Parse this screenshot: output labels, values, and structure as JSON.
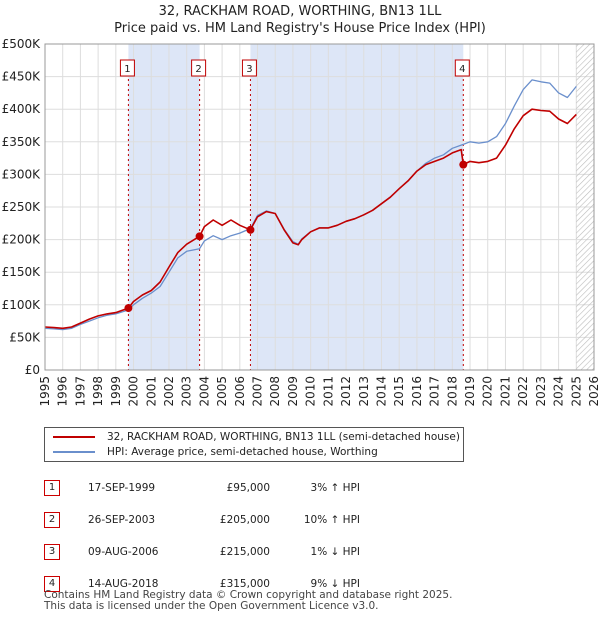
{
  "header": {
    "title": "32, RACKHAM ROAD, WORTHING, BN13 1LL",
    "subtitle": "Price paid vs. HM Land Registry's House Price Index (HPI)"
  },
  "legend": {
    "property": "32, RACKHAM ROAD, WORTHING, BN13 1LL (semi-detached house)",
    "hpi": "HPI: Average price, semi-detached house, Worthing"
  },
  "sales": [
    {
      "num": "1",
      "date": "17-SEP-1999",
      "price": "£95,000",
      "hpi": "3% ↑ HPI"
    },
    {
      "num": "2",
      "date": "26-SEP-2003",
      "price": "£205,000",
      "hpi": "10% ↑ HPI"
    },
    {
      "num": "3",
      "date": "09-AUG-2006",
      "price": "£215,000",
      "hpi": "1% ↓ HPI"
    },
    {
      "num": "4",
      "date": "14-AUG-2018",
      "price": "£315,000",
      "hpi": "9% ↓ HPI"
    }
  ],
  "footer": {
    "line1": "Contains HM Land Registry data © Crown copyright and database right 2025.",
    "line2": "This data is licensed under the Open Government Licence v3.0."
  },
  "colors": {
    "property": "#c00000",
    "hpi": "#6a8fcc",
    "shade": "#dde6f7",
    "grid": "#dddddd"
  },
  "chart_data": {
    "type": "line",
    "title": "32, RACKHAM ROAD, WORTHING, BN13 1LL",
    "subtitle": "Price paid vs. HM Land Registry's House Price Index (HPI)",
    "xlabel": "",
    "ylabel": "",
    "xlim": [
      1995,
      2026
    ],
    "ylim": [
      0,
      500000
    ],
    "yticks": [
      0,
      50000,
      100000,
      150000,
      200000,
      250000,
      300000,
      350000,
      400000,
      450000,
      500000
    ],
    "ytick_labels": [
      "£0",
      "£50K",
      "£100K",
      "£150K",
      "£200K",
      "£250K",
      "£300K",
      "£350K",
      "£400K",
      "£450K",
      "£500K"
    ],
    "xticks": [
      1995,
      1996,
      1997,
      1998,
      1999,
      2000,
      2001,
      2002,
      2003,
      2004,
      2005,
      2006,
      2007,
      2008,
      2009,
      2010,
      2011,
      2012,
      2013,
      2014,
      2015,
      2016,
      2017,
      2018,
      2019,
      2020,
      2021,
      2022,
      2023,
      2024,
      2025,
      2026
    ],
    "shaded_ranges": [
      [
        1999.71,
        2003.73
      ],
      [
        2006.6,
        2018.62
      ]
    ],
    "future_hatch_from": 2025.0,
    "sale_markers": [
      {
        "label": "1",
        "x": 1999.71,
        "y": 95000
      },
      {
        "label": "2",
        "x": 2003.73,
        "y": 205000
      },
      {
        "label": "3",
        "x": 2006.6,
        "y": 215000
      },
      {
        "label": "4",
        "x": 2018.62,
        "y": 315000
      }
    ],
    "series": [
      {
        "name": "32, RACKHAM ROAD, WORTHING, BN13 1LL (semi-detached house)",
        "x": [
          1995.0,
          1995.5,
          1996.0,
          1996.5,
          1997.0,
          1997.5,
          1998.0,
          1998.5,
          1999.0,
          1999.71,
          2000.0,
          2000.5,
          2001.0,
          2001.5,
          2002.0,
          2002.5,
          2003.0,
          2003.73,
          2004.0,
          2004.5,
          2005.0,
          2005.5,
          2006.0,
          2006.6,
          2007.0,
          2007.5,
          2008.0,
          2008.5,
          2009.0,
          2009.3,
          2009.5,
          2010.0,
          2010.5,
          2011.0,
          2011.5,
          2012.0,
          2012.5,
          2013.0,
          2013.5,
          2014.0,
          2014.5,
          2015.0,
          2015.5,
          2016.0,
          2016.5,
          2017.0,
          2017.5,
          2018.0,
          2018.5,
          2018.62,
          2019.0,
          2019.5,
          2020.0,
          2020.5,
          2021.0,
          2021.5,
          2022.0,
          2022.5,
          2023.0,
          2023.5,
          2024.0,
          2024.5,
          2025.0
        ],
        "y": [
          66000,
          65000,
          64000,
          66000,
          72000,
          78000,
          83000,
          86000,
          88000,
          95000,
          105000,
          115000,
          122000,
          135000,
          158000,
          180000,
          193000,
          205000,
          220000,
          230000,
          222000,
          230000,
          222000,
          215000,
          235000,
          243000,
          240000,
          215000,
          195000,
          192000,
          200000,
          212000,
          218000,
          218000,
          222000,
          228000,
          232000,
          238000,
          245000,
          255000,
          265000,
          278000,
          290000,
          305000,
          315000,
          320000,
          325000,
          333000,
          338000,
          315000,
          320000,
          318000,
          320000,
          325000,
          345000,
          370000,
          390000,
          400000,
          398000,
          397000,
          385000,
          378000,
          392000
        ]
      },
      {
        "name": "HPI: Average price, semi-detached house, Worthing",
        "x": [
          1995.0,
          1995.5,
          1996.0,
          1996.5,
          1997.0,
          1997.5,
          1998.0,
          1998.5,
          1999.0,
          1999.71,
          2000.0,
          2000.5,
          2001.0,
          2001.5,
          2002.0,
          2002.5,
          2003.0,
          2003.73,
          2004.0,
          2004.5,
          2005.0,
          2005.5,
          2006.0,
          2006.6,
          2007.0,
          2007.5,
          2008.0,
          2008.5,
          2009.0,
          2009.3,
          2009.5,
          2010.0,
          2010.5,
          2011.0,
          2011.5,
          2012.0,
          2012.5,
          2013.0,
          2013.5,
          2014.0,
          2014.5,
          2015.0,
          2015.5,
          2016.0,
          2016.5,
          2017.0,
          2017.5,
          2018.0,
          2018.5,
          2018.62,
          2019.0,
          2019.5,
          2020.0,
          2020.5,
          2021.0,
          2021.5,
          2022.0,
          2022.5,
          2023.0,
          2023.5,
          2024.0,
          2024.5,
          2025.0
        ],
        "y": [
          64000,
          63000,
          62000,
          64000,
          70000,
          75000,
          80000,
          84000,
          86000,
          92000,
          100000,
          110000,
          118000,
          128000,
          150000,
          172000,
          182000,
          186000,
          198000,
          206000,
          200000,
          206000,
          210000,
          217000,
          237000,
          244000,
          240000,
          216000,
          197000,
          193000,
          201000,
          212000,
          218000,
          218000,
          222000,
          228000,
          232000,
          238000,
          245000,
          255000,
          265000,
          278000,
          290000,
          305000,
          317000,
          325000,
          330000,
          340000,
          345000,
          346000,
          350000,
          348000,
          350000,
          358000,
          378000,
          405000,
          430000,
          445000,
          442000,
          440000,
          425000,
          418000,
          435000
        ]
      }
    ]
  }
}
